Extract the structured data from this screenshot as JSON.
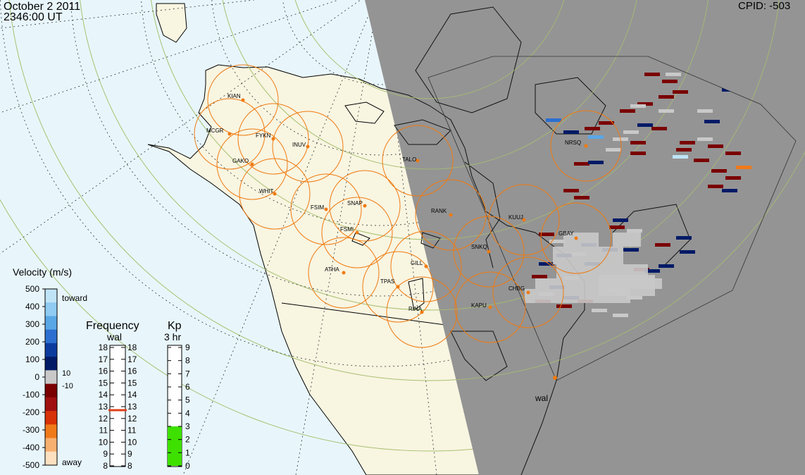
{
  "header": {
    "date": "October  2 2011",
    "time": "2346:00 UT",
    "cpid": "CPID:   -503"
  },
  "radar_label": "wal",
  "stations": [
    {
      "id": "KIAN"
    },
    {
      "id": "MCGR"
    },
    {
      "id": "FYKN"
    },
    {
      "id": "INUV"
    },
    {
      "id": "GAKO"
    },
    {
      "id": "WHIT"
    },
    {
      "id": "FSIM"
    },
    {
      "id": "SNAP"
    },
    {
      "id": "FSMI"
    },
    {
      "id": "TALO"
    },
    {
      "id": "RANK"
    },
    {
      "id": "KUUJ"
    },
    {
      "id": "GBAY"
    },
    {
      "id": "NRSQ"
    },
    {
      "id": "SNKQ"
    },
    {
      "id": "GILL"
    },
    {
      "id": "ATHA"
    },
    {
      "id": "TPAS"
    },
    {
      "id": "RINA"
    },
    {
      "id": "KAPU"
    },
    {
      "id": "CHBG"
    }
  ],
  "velocity_legend": {
    "title": "Velocity (m/s)",
    "ticks": [
      "500",
      "400",
      "300",
      "200",
      "100",
      "0",
      "-100",
      "-200",
      "-300",
      "-400",
      "-500"
    ],
    "toward_label": "toward",
    "away_label": "away",
    "range_pos": "10",
    "range_neg": "-10",
    "colors_top_to_bottom": [
      "#bfe4f8",
      "#8fcbf2",
      "#5aa7e6",
      "#2c6fd0",
      "#0c3b9e",
      "#001a66",
      "#c9c9c9",
      "#7a0000",
      "#a01010",
      "#d83208",
      "#f07a1a",
      "#f8b070",
      "#fde0c0"
    ]
  },
  "frequency_legend": {
    "title": "Frequency",
    "subtitle": "wal",
    "ticks": [
      "18",
      "17",
      "16",
      "15",
      "14",
      "13",
      "12",
      "11",
      "10",
      "9",
      "8"
    ],
    "value_mhz": 12.7,
    "marker_color": "#e0401a"
  },
  "kp_legend": {
    "title": "Kp",
    "subtitle": "3 hr",
    "ticks": [
      "9",
      "8",
      "7",
      "6",
      "5",
      "4",
      "3",
      "2",
      "1",
      "0"
    ],
    "value": 3,
    "fill_color": "#3ee000"
  },
  "colors": {
    "ocean": "#e8f6fc",
    "land_day": "#f8f5e1",
    "night": "#949494",
    "coast": "#000000",
    "fov_circle": "#f07a10",
    "grid": "#a8c070",
    "station_dot": "#f07a10"
  }
}
